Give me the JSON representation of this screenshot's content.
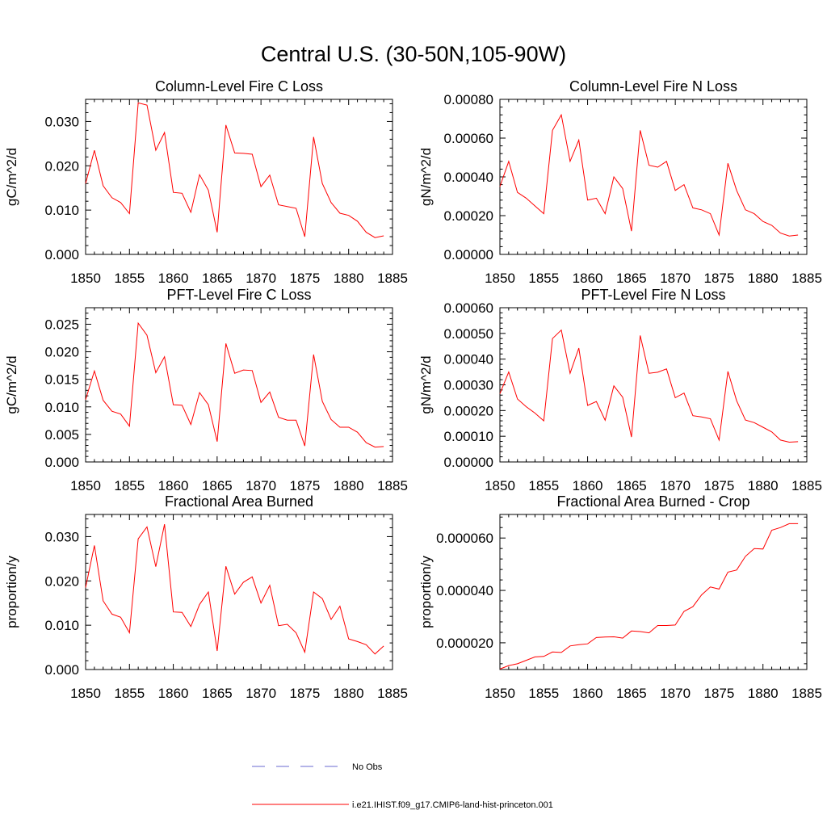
{
  "title": "Central U.S. (30-50N,105-90W)",
  "series_color": "#ff0000",
  "obs_color": "#6a6ad0",
  "legend": [
    {
      "label": "No Obs",
      "style": "dashed",
      "color": "#6a6ad0"
    },
    {
      "label": "i.e21.IHIST.f09_g17.CMIP6-land-hist-princeton.001",
      "style": "solid",
      "color": "#ff0000"
    }
  ],
  "chart_data": [
    {
      "type": "line",
      "title": "Column-Level Fire C Loss",
      "ylabel": "gC/m^2/d",
      "xlim": [
        1850,
        1885
      ],
      "ylim": [
        0,
        0.035
      ],
      "xticks": [
        1850,
        1855,
        1860,
        1865,
        1870,
        1875,
        1880,
        1885
      ],
      "xtick_labels": [
        "1850",
        "1855",
        "1860",
        "1865",
        "1870",
        "1875",
        "1880",
        "1885"
      ],
      "yticks": [
        0,
        0.01,
        0.02,
        0.03
      ],
      "ytick_labels": [
        "0.000",
        "0.010",
        "0.020",
        "0.030"
      ],
      "series": [
        {
          "x": [
            1850,
            1851,
            1852,
            1853,
            1854,
            1855,
            1856,
            1857,
            1858,
            1859,
            1860,
            1861,
            1862,
            1863,
            1864,
            1865,
            1866,
            1867,
            1868,
            1869,
            1870,
            1871,
            1872,
            1873,
            1874,
            1875,
            1876,
            1877,
            1878,
            1879,
            1880,
            1881,
            1882,
            1883,
            1884
          ],
          "values": [
            0.016,
            0.0235,
            0.0155,
            0.0128,
            0.0117,
            0.0092,
            0.0342,
            0.0337,
            0.0235,
            0.0275,
            0.014,
            0.0138,
            0.0095,
            0.018,
            0.0145,
            0.005,
            0.0292,
            0.0229,
            0.0228,
            0.0226,
            0.0153,
            0.0179,
            0.0112,
            0.0108,
            0.0104,
            0.004,
            0.0265,
            0.016,
            0.0117,
            0.0093,
            0.0088,
            0.0075,
            0.005,
            0.0038,
            0.0042
          ]
        }
      ]
    },
    {
      "type": "line",
      "title": "Column-Level Fire N Loss",
      "ylabel": "gN/m^2/d",
      "xlim": [
        1850,
        1885
      ],
      "ylim": [
        0,
        0.0008
      ],
      "xticks": [
        1850,
        1855,
        1860,
        1865,
        1870,
        1875,
        1880,
        1885
      ],
      "xtick_labels": [
        "1850",
        "1855",
        "1860",
        "1865",
        "1870",
        "1875",
        "1880",
        "1885"
      ],
      "yticks": [
        0,
        0.0002,
        0.0004,
        0.0006,
        0.0008
      ],
      "ytick_labels": [
        "0.00000",
        "0.00020",
        "0.00040",
        "0.00060",
        "0.00080"
      ],
      "series": [
        {
          "x": [
            1850,
            1851,
            1852,
            1853,
            1854,
            1855,
            1856,
            1857,
            1858,
            1859,
            1860,
            1861,
            1862,
            1863,
            1864,
            1865,
            1866,
            1867,
            1868,
            1869,
            1870,
            1871,
            1872,
            1873,
            1874,
            1875,
            1876,
            1877,
            1878,
            1879,
            1880,
            1881,
            1882,
            1883,
            1884
          ],
          "values": [
            0.00035,
            0.00048,
            0.00032,
            0.00029,
            0.00025,
            0.00021,
            0.00064,
            0.00072,
            0.00048,
            0.00059,
            0.00028,
            0.00029,
            0.00021,
            0.0004,
            0.00034,
            0.00012,
            0.00064,
            0.00046,
            0.00045,
            0.00048,
            0.00033,
            0.00036,
            0.00024,
            0.00023,
            0.00021,
            0.0001,
            0.00047,
            0.00033,
            0.00023,
            0.00021,
            0.00017,
            0.00015,
            0.00011,
            9.5e-05,
            0.0001
          ]
        }
      ]
    },
    {
      "type": "line",
      "title": "PFT-Level Fire C Loss",
      "ylabel": "gC/m^2/d",
      "xlim": [
        1850,
        1885
      ],
      "ylim": [
        0,
        0.028
      ],
      "xticks": [
        1850,
        1855,
        1860,
        1865,
        1870,
        1875,
        1880,
        1885
      ],
      "xtick_labels": [
        "1850",
        "1855",
        "1860",
        "1865",
        "1870",
        "1875",
        "1880",
        "1885"
      ],
      "yticks": [
        0,
        0.005,
        0.01,
        0.015,
        0.02,
        0.025
      ],
      "ytick_labels": [
        "0.000",
        "0.005",
        "0.010",
        "0.015",
        "0.020",
        "0.025"
      ],
      "series": [
        {
          "x": [
            1850,
            1851,
            1852,
            1853,
            1854,
            1855,
            1856,
            1857,
            1858,
            1859,
            1860,
            1861,
            1862,
            1863,
            1864,
            1865,
            1866,
            1867,
            1868,
            1869,
            1870,
            1871,
            1872,
            1873,
            1874,
            1875,
            1876,
            1877,
            1878,
            1879,
            1880,
            1881,
            1882,
            1883,
            1884
          ],
          "values": [
            0.0113,
            0.0165,
            0.0112,
            0.0092,
            0.0087,
            0.0065,
            0.0252,
            0.023,
            0.0162,
            0.0191,
            0.0104,
            0.0103,
            0.0068,
            0.0126,
            0.0104,
            0.0037,
            0.0215,
            0.0161,
            0.0167,
            0.0166,
            0.0108,
            0.0127,
            0.0081,
            0.0076,
            0.0076,
            0.0029,
            0.0195,
            0.011,
            0.0077,
            0.0063,
            0.0063,
            0.0054,
            0.0035,
            0.0027,
            0.0028
          ]
        }
      ]
    },
    {
      "type": "line",
      "title": "PFT-Level Fire N Loss",
      "ylabel": "gN/m^2/d",
      "xlim": [
        1850,
        1885
      ],
      "ylim": [
        0,
        0.0006
      ],
      "xticks": [
        1850,
        1855,
        1860,
        1865,
        1870,
        1875,
        1880,
        1885
      ],
      "xtick_labels": [
        "1850",
        "1855",
        "1860",
        "1865",
        "1870",
        "1875",
        "1880",
        "1885"
      ],
      "yticks": [
        0,
        0.0001,
        0.0002,
        0.0003,
        0.0004,
        0.0005,
        0.0006
      ],
      "ytick_labels": [
        "0.00000",
        "0.00010",
        "0.00020",
        "0.00030",
        "0.00040",
        "0.00050",
        "0.00060"
      ],
      "series": [
        {
          "x": [
            1850,
            1851,
            1852,
            1853,
            1854,
            1855,
            1856,
            1857,
            1858,
            1859,
            1860,
            1861,
            1862,
            1863,
            1864,
            1865,
            1866,
            1867,
            1868,
            1869,
            1870,
            1871,
            1872,
            1873,
            1874,
            1875,
            1876,
            1877,
            1878,
            1879,
            1880,
            1881,
            1882,
            1883,
            1884
          ],
          "values": [
            0.000265,
            0.00035,
            0.000245,
            0.000215,
            0.00019,
            0.00016,
            0.00048,
            0.000513,
            0.000345,
            0.000443,
            0.00022,
            0.000235,
            0.000162,
            0.000296,
            0.000252,
            9.7e-05,
            0.000492,
            0.000345,
            0.000349,
            0.000362,
            0.00025,
            0.000268,
            0.00018,
            0.000175,
            0.000168,
            8.5e-05,
            0.000352,
            0.000238,
            0.000163,
            0.000153,
            0.000135,
            0.000117,
            8.5e-05,
            7.7e-05,
            7.9e-05
          ]
        }
      ]
    },
    {
      "type": "line",
      "title": "Fractional Area Burned",
      "ylabel": "proportion/y",
      "xlim": [
        1850,
        1885
      ],
      "ylim": [
        0,
        0.035
      ],
      "xticks": [
        1850,
        1855,
        1860,
        1865,
        1870,
        1875,
        1880,
        1885
      ],
      "xtick_labels": [
        "1850",
        "1855",
        "1860",
        "1865",
        "1870",
        "1875",
        "1880",
        "1885"
      ],
      "yticks": [
        0,
        0.01,
        0.02,
        0.03
      ],
      "ytick_labels": [
        "0.000",
        "0.010",
        "0.020",
        "0.030"
      ],
      "series": [
        {
          "x": [
            1850,
            1851,
            1852,
            1853,
            1854,
            1855,
            1856,
            1857,
            1858,
            1859,
            1860,
            1861,
            1862,
            1863,
            1864,
            1865,
            1866,
            1867,
            1868,
            1869,
            1870,
            1871,
            1872,
            1873,
            1874,
            1875,
            1876,
            1877,
            1878,
            1879,
            1880,
            1881,
            1882,
            1883,
            1884
          ],
          "values": [
            0.0185,
            0.028,
            0.0155,
            0.0125,
            0.0118,
            0.0083,
            0.0295,
            0.0322,
            0.0232,
            0.0328,
            0.013,
            0.0129,
            0.0097,
            0.0147,
            0.0175,
            0.0042,
            0.0233,
            0.017,
            0.0197,
            0.0209,
            0.015,
            0.019,
            0.0099,
            0.0102,
            0.0083,
            0.0039,
            0.0175,
            0.016,
            0.0113,
            0.0143,
            0.0069,
            0.0063,
            0.0056,
            0.0035,
            0.0053
          ]
        }
      ]
    },
    {
      "type": "line",
      "title": "Fractional Area Burned - Crop",
      "ylabel": "proportion/y",
      "xlim": [
        1850,
        1885
      ],
      "ylim": [
        9.8e-06,
        6.9e-05
      ],
      "xticks": [
        1850,
        1855,
        1860,
        1865,
        1870,
        1875,
        1880,
        1885
      ],
      "xtick_labels": [
        "1850",
        "1855",
        "1860",
        "1865",
        "1870",
        "1875",
        "1880",
        "1885"
      ],
      "yticks": [
        2e-05,
        4e-05,
        6e-05
      ],
      "ytick_labels": [
        "0.000020",
        "0.000040",
        "0.000060"
      ],
      "series": [
        {
          "x": [
            1850,
            1851,
            1852,
            1853,
            1854,
            1855,
            1856,
            1857,
            1858,
            1859,
            1860,
            1861,
            1862,
            1863,
            1864,
            1865,
            1866,
            1867,
            1868,
            1869,
            1870,
            1871,
            1872,
            1873,
            1874,
            1875,
            1876,
            1877,
            1878,
            1879,
            1880,
            1881,
            1882,
            1883,
            1884
          ],
          "values": [
            1e-05,
            1.13e-05,
            1.2e-05,
            1.33e-05,
            1.46e-05,
            1.48e-05,
            1.65e-05,
            1.63e-05,
            1.88e-05,
            1.93e-05,
            1.96e-05,
            2.2e-05,
            2.22e-05,
            2.23e-05,
            2.18e-05,
            2.45e-05,
            2.43e-05,
            2.38e-05,
            2.66e-05,
            2.66e-05,
            2.68e-05,
            3.2e-05,
            3.38e-05,
            3.83e-05,
            4.13e-05,
            4.05e-05,
            4.7e-05,
            4.78e-05,
            5.3e-05,
            5.6e-05,
            5.58e-05,
            6.3e-05,
            6.4e-05,
            6.55e-05,
            6.55e-05
          ]
        }
      ]
    }
  ]
}
